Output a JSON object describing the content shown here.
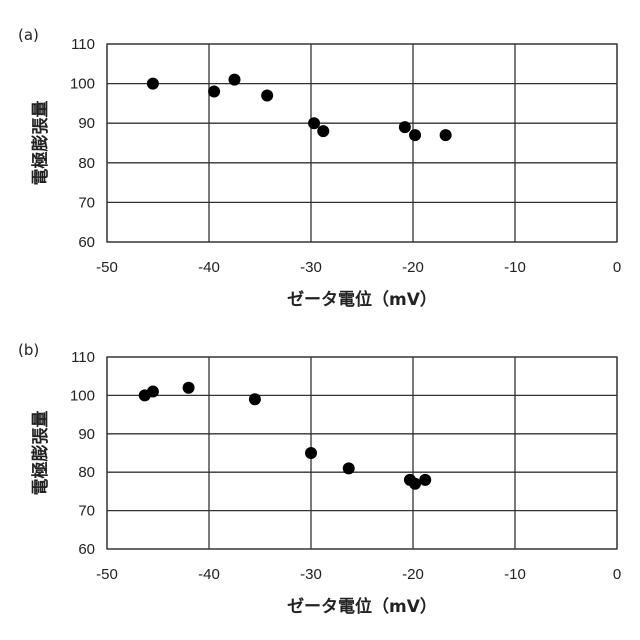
{
  "chart_data": [
    {
      "type": "scatter",
      "panel_label": "(a)",
      "xlabel": "ゼータ電位（mV）",
      "ylabel": "電極膨張量",
      "xlim": [
        -50,
        0
      ],
      "ylim": [
        60,
        110
      ],
      "xticks": [
        "-50",
        "-40",
        "-30",
        "-20",
        "-10",
        "0"
      ],
      "yticks": [
        "60",
        "70",
        "80",
        "90",
        "100",
        "110"
      ],
      "grid": true,
      "points": [
        {
          "x": -45.5,
          "y": 100
        },
        {
          "x": -39.5,
          "y": 98
        },
        {
          "x": -37.5,
          "y": 101
        },
        {
          "x": -34.3,
          "y": 97
        },
        {
          "x": -29.7,
          "y": 90
        },
        {
          "x": -28.8,
          "y": 88
        },
        {
          "x": -20.8,
          "y": 89
        },
        {
          "x": -19.8,
          "y": 87
        },
        {
          "x": -16.8,
          "y": 87
        }
      ]
    },
    {
      "type": "scatter",
      "panel_label": "(b)",
      "xlabel": "ゼータ電位（mV）",
      "ylabel": "電極膨張量",
      "xlim": [
        -50,
        0
      ],
      "ylim": [
        60,
        110
      ],
      "xticks": [
        "-50",
        "-40",
        "-30",
        "-20",
        "-10",
        "0"
      ],
      "yticks": [
        "60",
        "70",
        "80",
        "90",
        "100",
        "110"
      ],
      "grid": true,
      "points": [
        {
          "x": -46.3,
          "y": 100
        },
        {
          "x": -45.5,
          "y": 101
        },
        {
          "x": -42.0,
          "y": 102
        },
        {
          "x": -35.5,
          "y": 99
        },
        {
          "x": -30.0,
          "y": 85
        },
        {
          "x": -26.3,
          "y": 81
        },
        {
          "x": -20.3,
          "y": 78
        },
        {
          "x": -19.8,
          "y": 77
        },
        {
          "x": -18.8,
          "y": 78
        }
      ]
    }
  ]
}
